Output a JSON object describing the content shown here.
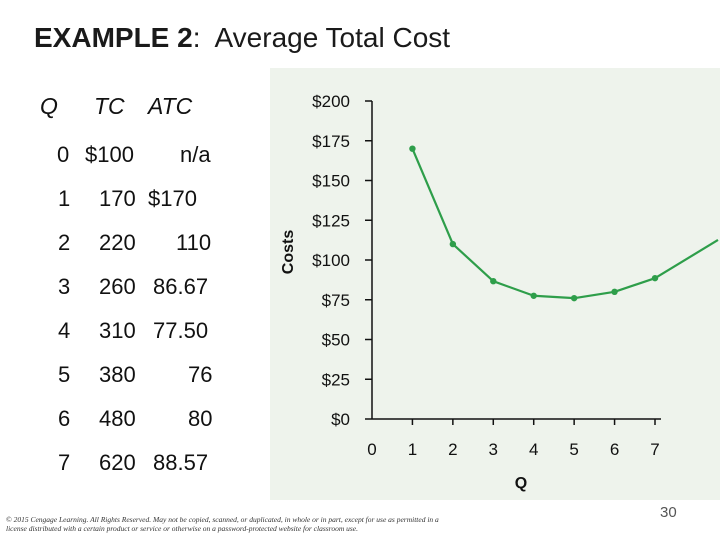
{
  "title": {
    "bold": "EXAMPLE 2",
    "sep": ":",
    "rest": "Average Total Cost"
  },
  "table": {
    "headers": [
      "Q",
      "TC",
      "ATC"
    ],
    "rows": [
      [
        "0",
        "$100",
        "n/a"
      ],
      [
        "1",
        "170",
        "$170"
      ],
      [
        "2",
        "220",
        "110"
      ],
      [
        "3",
        "260",
        "86.67"
      ],
      [
        "4",
        "310",
        "77.50"
      ],
      [
        "5",
        "380",
        "76"
      ],
      [
        "6",
        "480",
        "80"
      ],
      [
        "7",
        "620",
        "88.57"
      ]
    ]
  },
  "chart_data": {
    "type": "line",
    "xlabel": "Q",
    "ylabel": "Costs",
    "xlim": [
      0,
      7
    ],
    "ylim": [
      0,
      200
    ],
    "x_ticks": [
      "0",
      "1",
      "2",
      "3",
      "4",
      "5",
      "6",
      "7"
    ],
    "y_ticks": [
      "$0",
      "$25",
      "$50",
      "$75",
      "$100",
      "$125",
      "$150",
      "$175",
      "$200"
    ],
    "series": [
      {
        "x": [
          1,
          2,
          3,
          4,
          5,
          6,
          7
        ],
        "y": [
          170,
          110,
          86.67,
          77.5,
          76,
          80,
          88.57
        ]
      }
    ],
    "colors": {
      "line": "#2e9e4a",
      "marker": "#2e9e4a",
      "panel": "#eef3ec"
    }
  },
  "copyright": "© 2015 Cengage Learning. All Rights Reserved. May not be copied, scanned, or duplicated, in whole or in part, except for use as permitted in a license distributed with a certain product or service or otherwise on a password-protected website for classroom use.",
  "page_number": "30"
}
